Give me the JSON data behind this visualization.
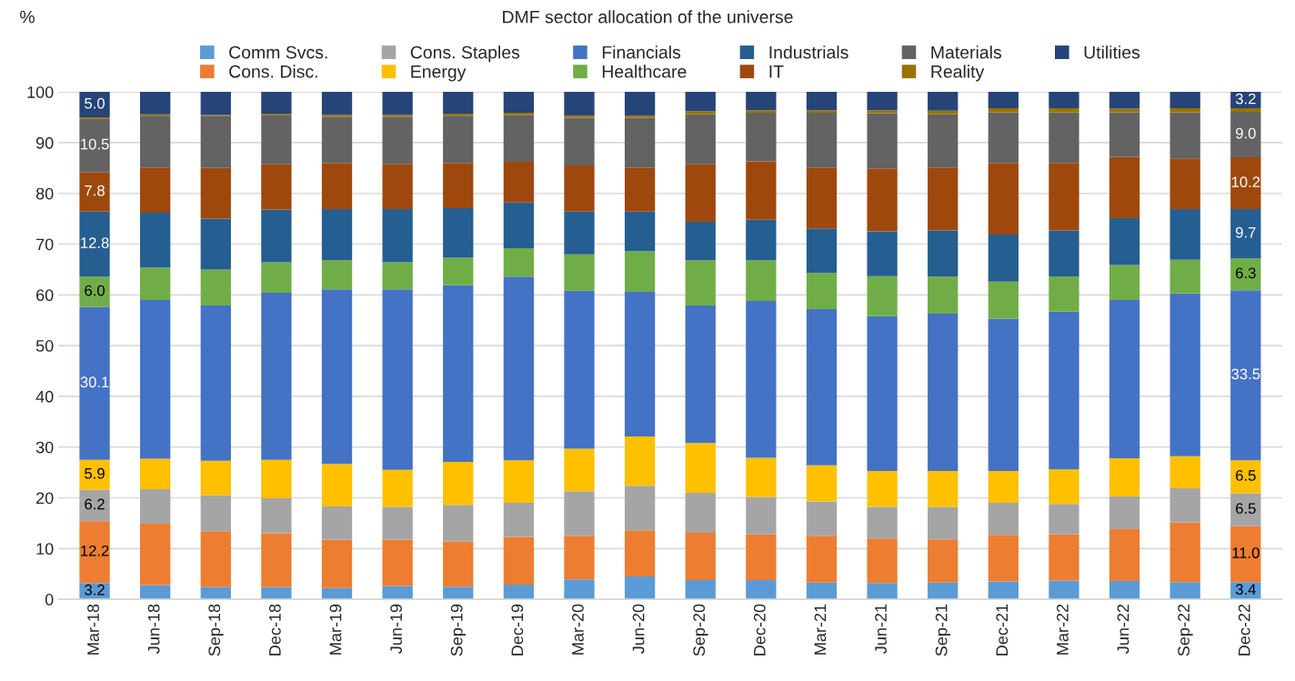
{
  "chart_data": {
    "type": "bar",
    "title": "DMF sector allocation of the universe",
    "ylabel": "%",
    "categories": [
      "Mar-18",
      "Jun-18",
      "Sep-18",
      "Dec-18",
      "Mar-19",
      "Jun-19",
      "Sep-19",
      "Dec-19",
      "Mar-20",
      "Jun-20",
      "Sep-20",
      "Dec-20",
      "Mar-21",
      "Jun-21",
      "Sep-21",
      "Dec-21",
      "Mar-22",
      "Jun-22",
      "Sep-22",
      "Dec-22"
    ],
    "stacked": true,
    "ylim": [
      0,
      100
    ],
    "yticks": [
      0,
      10,
      20,
      30,
      40,
      50,
      60,
      70,
      80,
      90,
      100
    ],
    "grid": "y",
    "legend": "top",
    "series": [
      {
        "name": "Comm Svcs.",
        "color": "#5b9bd5",
        "values": [
          3.2,
          2.8,
          2.4,
          2.4,
          2.2,
          2.6,
          2.5,
          2.9,
          3.9,
          4.5,
          3.8,
          3.8,
          3.3,
          3.2,
          3.3,
          3.5,
          3.7,
          3.6,
          3.4,
          3.4
        ],
        "value_labels": [
          "3.2",
          null,
          null,
          null,
          null,
          null,
          null,
          null,
          null,
          null,
          null,
          null,
          null,
          null,
          null,
          null,
          null,
          null,
          null,
          "3.4"
        ]
      },
      {
        "name": "Cons. Disc.",
        "color": "#ed7d31",
        "values": [
          12.2,
          12.1,
          11.0,
          10.6,
          9.5,
          9.1,
          8.9,
          9.4,
          8.6,
          9.1,
          9.3,
          9.0,
          9.2,
          8.8,
          8.5,
          9.2,
          9.1,
          10.2,
          11.7,
          11.0
        ],
        "value_labels": [
          "12.2",
          null,
          null,
          null,
          null,
          null,
          null,
          null,
          null,
          null,
          null,
          null,
          null,
          null,
          null,
          null,
          null,
          null,
          null,
          "11.0"
        ]
      },
      {
        "name": "Cons. Staples",
        "color": "#a5a5a5",
        "values": [
          6.2,
          6.8,
          7.1,
          6.9,
          6.6,
          6.5,
          7.2,
          6.7,
          8.8,
          8.8,
          7.9,
          7.4,
          6.8,
          6.2,
          6.4,
          6.3,
          6.0,
          6.5,
          6.8,
          6.5
        ],
        "value_labels": [
          "6.2",
          null,
          null,
          null,
          null,
          null,
          null,
          null,
          null,
          null,
          null,
          null,
          null,
          null,
          null,
          null,
          null,
          null,
          null,
          "6.5"
        ]
      },
      {
        "name": "Energy",
        "color": "#ffc000",
        "values": [
          5.9,
          6.0,
          6.8,
          7.6,
          8.4,
          7.3,
          8.5,
          8.4,
          8.4,
          9.7,
          9.8,
          7.7,
          7.1,
          7.1,
          7.1,
          6.3,
          6.8,
          7.5,
          6.3,
          6.5
        ],
        "value_labels": [
          "5.9",
          null,
          null,
          null,
          null,
          null,
          null,
          null,
          null,
          null,
          null,
          null,
          null,
          null,
          null,
          null,
          null,
          null,
          null,
          "6.5"
        ]
      },
      {
        "name": "Financials",
        "color": "#4472c4",
        "values": [
          30.1,
          31.3,
          30.6,
          32.9,
          34.4,
          35.6,
          34.8,
          36.2,
          31.1,
          28.5,
          27.1,
          30.9,
          30.8,
          30.5,
          31.0,
          30.0,
          31.1,
          31.2,
          32.1,
          33.5
        ],
        "value_labels": [
          "30.1",
          null,
          null,
          null,
          null,
          null,
          null,
          null,
          null,
          null,
          null,
          null,
          null,
          null,
          null,
          null,
          null,
          null,
          null,
          "33.5"
        ]
      },
      {
        "name": "Healthcare",
        "color": "#70ad47",
        "values": [
          6.0,
          6.4,
          7.1,
          6.0,
          5.7,
          5.3,
          5.4,
          5.6,
          7.2,
          8.0,
          8.9,
          8.0,
          7.1,
          7.9,
          7.3,
          7.3,
          6.9,
          6.9,
          6.6,
          6.3
        ],
        "value_labels": [
          "6.0",
          null,
          null,
          null,
          null,
          null,
          null,
          null,
          null,
          null,
          null,
          null,
          null,
          null,
          null,
          null,
          null,
          null,
          null,
          "6.3"
        ]
      },
      {
        "name": "Industrials",
        "color": "#255e91",
        "values": [
          12.8,
          10.8,
          10.0,
          10.4,
          10.1,
          10.5,
          9.8,
          9.0,
          8.4,
          7.8,
          7.6,
          8.0,
          8.8,
          8.8,
          9.1,
          9.3,
          9.1,
          9.2,
          10.0,
          9.7
        ],
        "value_labels": [
          "12.8",
          null,
          null,
          null,
          null,
          null,
          null,
          null,
          null,
          null,
          null,
          null,
          null,
          null,
          null,
          null,
          null,
          null,
          null,
          "9.7"
        ]
      },
      {
        "name": "IT",
        "color": "#9e480e",
        "values": [
          7.8,
          8.9,
          10.0,
          9.0,
          9.1,
          8.9,
          8.9,
          8.0,
          9.1,
          8.7,
          11.4,
          11.5,
          12.0,
          12.4,
          12.4,
          14.1,
          13.3,
          12.1,
          10.0,
          10.2
        ],
        "value_labels": [
          "7.8",
          null,
          null,
          null,
          null,
          null,
          null,
          null,
          null,
          null,
          null,
          null,
          null,
          null,
          null,
          null,
          null,
          null,
          null,
          "10.2"
        ]
      },
      {
        "name": "Materials",
        "color": "#636363",
        "values": [
          10.5,
          10.2,
          10.3,
          9.7,
          9.1,
          9.3,
          9.3,
          9.2,
          9.4,
          9.8,
          9.8,
          9.6,
          10.8,
          10.9,
          10.5,
          10.0,
          10.0,
          8.8,
          9.1,
          9.0
        ],
        "value_labels": [
          "10.5",
          null,
          null,
          null,
          null,
          null,
          null,
          null,
          null,
          null,
          null,
          null,
          null,
          null,
          null,
          null,
          null,
          null,
          null,
          "9.0"
        ]
      },
      {
        "name": "Reality",
        "color": "#997300",
        "values": [
          0.3,
          0.3,
          0.2,
          0.2,
          0.4,
          0.4,
          0.4,
          0.5,
          0.4,
          0.4,
          0.6,
          0.5,
          0.5,
          0.6,
          0.7,
          0.8,
          0.8,
          0.7,
          0.8,
          0.7
        ]
      },
      {
        "name": "Utilities",
        "color": "#264478",
        "values": [
          5.0,
          4.4,
          4.5,
          4.3,
          4.5,
          4.5,
          4.3,
          4.1,
          4.7,
          4.7,
          3.8,
          3.6,
          3.6,
          3.6,
          3.7,
          3.2,
          3.2,
          3.3,
          3.2,
          3.2
        ],
        "value_labels": [
          "5.0",
          null,
          null,
          null,
          null,
          null,
          null,
          null,
          null,
          null,
          null,
          null,
          null,
          null,
          null,
          null,
          null,
          null,
          null,
          "3.2"
        ]
      }
    ]
  }
}
